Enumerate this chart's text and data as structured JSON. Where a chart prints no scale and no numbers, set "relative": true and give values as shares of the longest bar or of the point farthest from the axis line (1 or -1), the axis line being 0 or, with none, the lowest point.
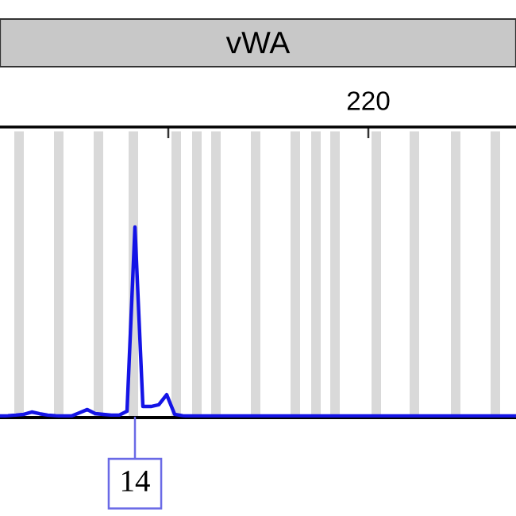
{
  "chart_data": {
    "type": "line",
    "title": "vWA",
    "relative": true,
    "marker": "none",
    "line_style": "solid",
    "tick_labels": false,
    "categories": [
      null,
      null,
      null,
      null,
      null,
      null,
      null,
      null,
      null,
      null,
      null,
      null,
      null,
      null,
      null,
      null,
      null,
      null,
      null,
      null,
      null,
      null,
      null,
      null,
      null,
      null,
      null,
      null,
      null,
      null,
      null,
      null,
      null,
      null,
      null,
      null,
      null,
      null,
      null,
      null,
      null,
      null,
      null,
      null,
      null,
      null,
      null,
      null,
      null,
      null,
      null,
      null,
      null,
      null,
      null,
      null,
      null,
      null,
      null,
      null,
      null,
      null,
      null,
      null,
      null,
      null
    ],
    "series": [
      {
        "color": "#1414e6",
        "values": [
          0.008,
          0.01,
          0.013,
          0.017,
          0.029,
          0.02,
          0.013,
          0.01,
          0.008,
          0.008,
          0.025,
          0.042,
          0.021,
          0.017,
          0.013,
          0.013,
          0.033,
          1,
          0.058,
          0.058,
          0.067,
          0.12,
          0.017,
          0.01,
          0.008,
          0.008,
          0.008,
          0.008,
          0.008,
          0.008,
          0.008,
          0.008,
          0.008,
          0.008,
          0.008,
          0.008,
          0.008,
          0.008,
          0.008,
          0.008,
          0.008,
          0.008,
          0.008,
          0.008,
          0.008,
          0.008,
          0.008,
          0.008,
          0.008,
          0.008,
          0.008,
          0.008,
          0.008,
          0.008,
          0.008,
          0.008,
          0.008,
          0.008,
          0.008,
          0.008,
          0.008,
          0.008,
          0.008,
          0.008,
          0.008,
          0.008
        ]
      }
    ],
    "annotations": [
      "220",
      "14"
    ]
  }
}
